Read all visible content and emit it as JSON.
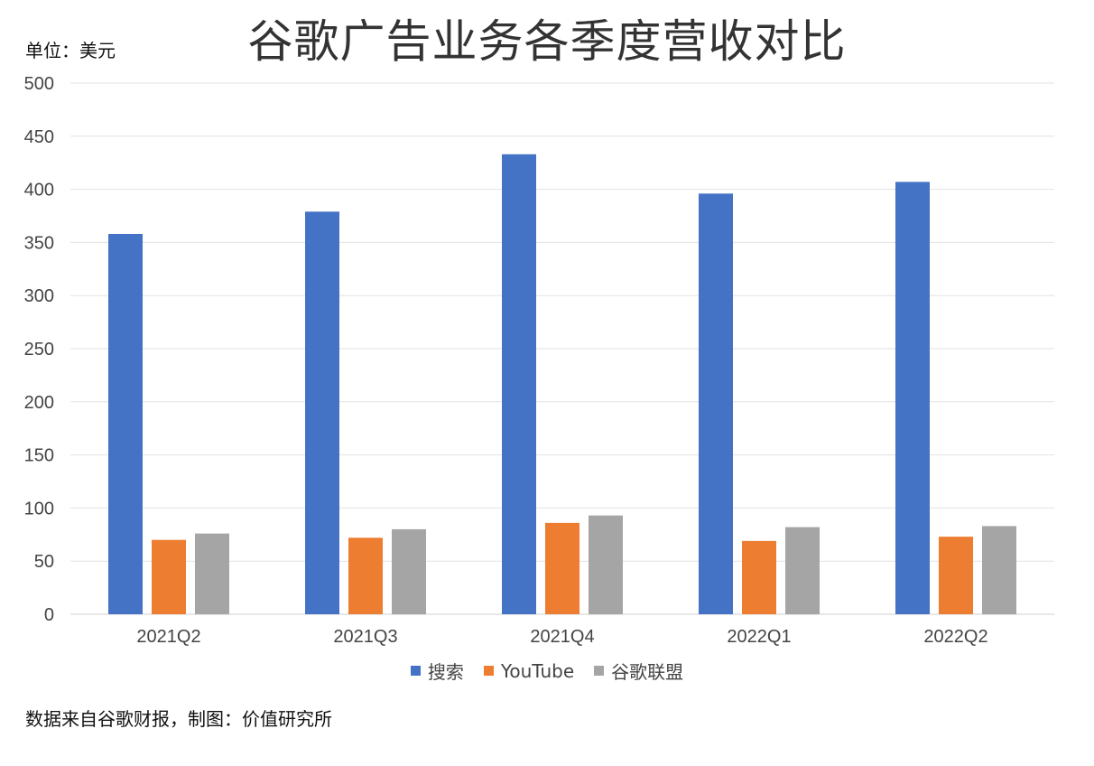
{
  "chart_data": {
    "type": "bar",
    "title": "谷歌广告业务各季度营收对比",
    "unit_label": "单位：美元",
    "categories": [
      "2021Q2",
      "2021Q3",
      "2021Q4",
      "2022Q1",
      "2022Q2"
    ],
    "series": [
      {
        "name": "搜索",
        "color": "#4472C4",
        "values": [
          358,
          379,
          433,
          396,
          407
        ]
      },
      {
        "name": "YouTube",
        "color": "#ED7D31",
        "values": [
          70,
          72,
          86,
          69,
          73
        ]
      },
      {
        "name": "谷歌联盟",
        "color": "#A5A5A5",
        "values": [
          76,
          80,
          93,
          82,
          83
        ]
      }
    ],
    "ylim": [
      0,
      500
    ],
    "yticks": [
      0,
      50,
      100,
      150,
      200,
      250,
      300,
      350,
      400,
      450,
      500
    ],
    "grid": true,
    "legend_position": "bottom",
    "source_note": "数据来自谷歌财报，制图：价值研究所"
  }
}
